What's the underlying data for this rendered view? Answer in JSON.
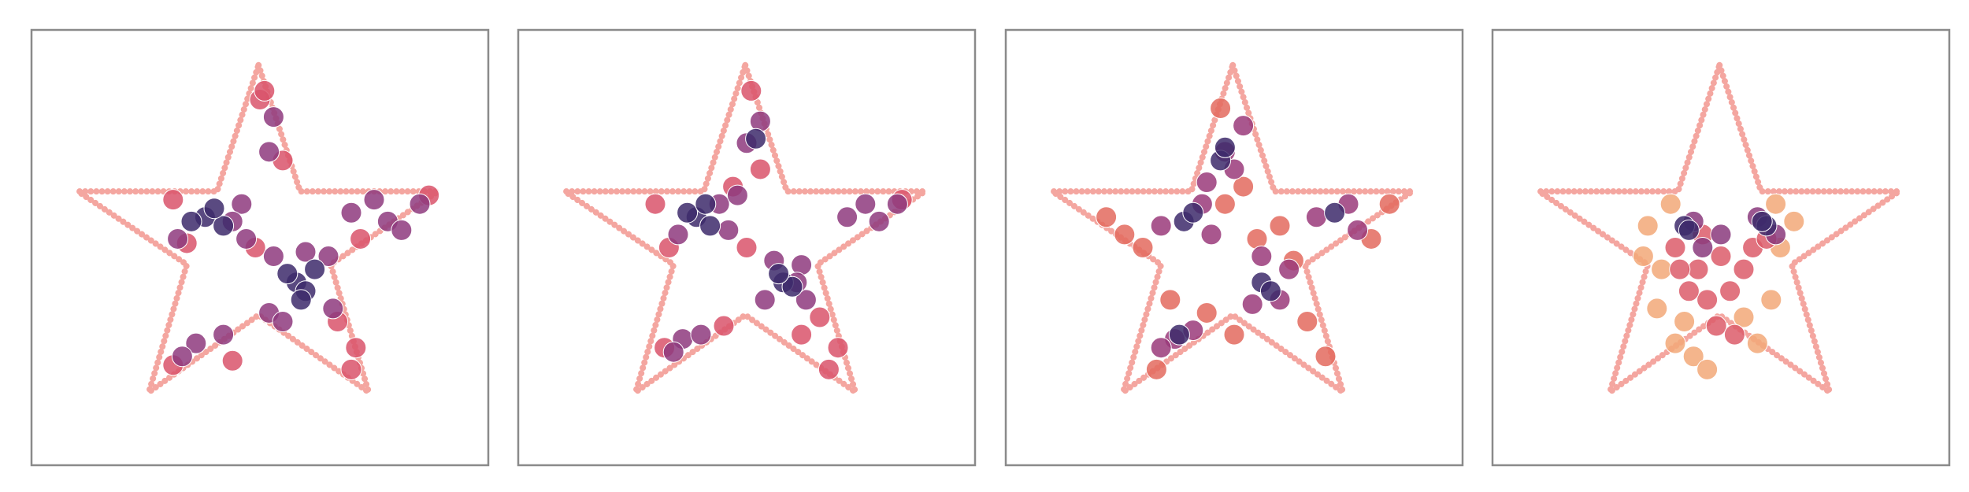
{
  "chart_data": [
    {
      "type": "scatter",
      "xlim": [
        0,
        1
      ],
      "ylim": [
        0,
        1
      ],
      "outline": {
        "color": "#f4a6a0",
        "x": [
          0.497,
          0.588,
          0.89,
          0.655,
          0.738,
          0.497,
          0.257,
          0.34,
          0.102,
          0.406,
          0.497
        ],
        "y": [
          0.919,
          0.629,
          0.629,
          0.461,
          0.168,
          0.345,
          0.168,
          0.461,
          0.629,
          0.629,
          0.919
        ]
      },
      "series": [
        {
          "color": "#d9536b",
          "x": [
            0.31,
            0.49,
            0.5,
            0.55,
            0.67,
            0.87,
            0.72,
            0.44,
            0.7,
            0.71,
            0.31,
            0.51,
            0.34
          ],
          "y": [
            0.61,
            0.5,
            0.84,
            0.7,
            0.33,
            0.62,
            0.52,
            0.24,
            0.22,
            0.27,
            0.23,
            0.86,
            0.51
          ]
        },
        {
          "color": "#8e3a7e",
          "x": [
            0.32,
            0.46,
            0.47,
            0.52,
            0.66,
            0.53,
            0.7,
            0.78,
            0.85,
            0.52,
            0.53,
            0.36,
            0.42,
            0.33,
            0.65,
            0.44,
            0.75,
            0.81,
            0.55,
            0.6
          ],
          "y": [
            0.52,
            0.6,
            0.52,
            0.35,
            0.36,
            0.48,
            0.58,
            0.56,
            0.6,
            0.72,
            0.8,
            0.28,
            0.3,
            0.25,
            0.48,
            0.56,
            0.61,
            0.54,
            0.33,
            0.49
          ]
        },
        {
          "color": "#3d2a6b",
          "x": [
            0.38,
            0.42,
            0.35,
            0.58,
            0.6,
            0.56,
            0.62,
            0.4,
            0.59
          ],
          "y": [
            0.57,
            0.55,
            0.56,
            0.42,
            0.4,
            0.44,
            0.45,
            0.59,
            0.38
          ]
        }
      ]
    },
    {
      "type": "scatter",
      "xlim": [
        0,
        1
      ],
      "ylim": [
        0,
        1
      ],
      "outline": {
        "color": "#f4a6a0",
        "x": [
          0.497,
          0.588,
          0.89,
          0.655,
          0.738,
          0.497,
          0.257,
          0.34,
          0.102,
          0.406,
          0.497
        ],
        "y": [
          0.919,
          0.629,
          0.629,
          0.461,
          0.168,
          0.345,
          0.168,
          0.461,
          0.629,
          0.629,
          0.919
        ]
      },
      "series": [
        {
          "color": "#d9536b",
          "x": [
            0.3,
            0.33,
            0.47,
            0.51,
            0.66,
            0.68,
            0.7,
            0.84,
            0.53,
            0.32,
            0.45,
            0.62,
            0.5
          ],
          "y": [
            0.6,
            0.5,
            0.64,
            0.86,
            0.34,
            0.22,
            0.27,
            0.61,
            0.68,
            0.27,
            0.32,
            0.3,
            0.5
          ]
        },
        {
          "color": "#8e3a7e",
          "x": [
            0.35,
            0.44,
            0.46,
            0.54,
            0.63,
            0.56,
            0.72,
            0.79,
            0.83,
            0.5,
            0.53,
            0.36,
            0.4,
            0.34,
            0.62,
            0.48,
            0.76,
            0.61
          ],
          "y": [
            0.53,
            0.6,
            0.54,
            0.38,
            0.38,
            0.47,
            0.57,
            0.56,
            0.6,
            0.74,
            0.79,
            0.29,
            0.3,
            0.26,
            0.46,
            0.62,
            0.6,
            0.42
          ]
        },
        {
          "color": "#3d2a6b",
          "x": [
            0.39,
            0.42,
            0.37,
            0.58,
            0.6,
            0.57,
            0.41,
            0.52
          ],
          "y": [
            0.57,
            0.55,
            0.58,
            0.42,
            0.41,
            0.44,
            0.6,
            0.75
          ]
        }
      ]
    },
    {
      "type": "scatter",
      "xlim": [
        0,
        1
      ],
      "ylim": [
        0,
        1
      ],
      "outline": {
        "color": "#f4a6a0",
        "x": [
          0.497,
          0.588,
          0.89,
          0.655,
          0.738,
          0.497,
          0.257,
          0.34,
          0.102,
          0.406,
          0.497
        ],
        "y": [
          0.919,
          0.629,
          0.629,
          0.461,
          0.168,
          0.345,
          0.168,
          0.461,
          0.629,
          0.629,
          0.919
        ]
      },
      "series": [
        {
          "color": "#e36a5e",
          "x": [
            0.22,
            0.26,
            0.3,
            0.47,
            0.52,
            0.6,
            0.66,
            0.7,
            0.8,
            0.84,
            0.33,
            0.44,
            0.63,
            0.55,
            0.36,
            0.48,
            0.5
          ],
          "y": [
            0.57,
            0.53,
            0.5,
            0.82,
            0.64,
            0.55,
            0.33,
            0.25,
            0.52,
            0.6,
            0.22,
            0.35,
            0.47,
            0.52,
            0.38,
            0.6,
            0.3
          ]
        },
        {
          "color": "#9a3a7a",
          "x": [
            0.34,
            0.43,
            0.45,
            0.48,
            0.5,
            0.54,
            0.6,
            0.62,
            0.68,
            0.75,
            0.77,
            0.37,
            0.41,
            0.34,
            0.56,
            0.44,
            0.52
          ],
          "y": [
            0.55,
            0.6,
            0.53,
            0.72,
            0.68,
            0.37,
            0.38,
            0.45,
            0.57,
            0.6,
            0.54,
            0.29,
            0.31,
            0.27,
            0.48,
            0.65,
            0.78
          ]
        },
        {
          "color": "#3d2a6b",
          "x": [
            0.39,
            0.41,
            0.47,
            0.48,
            0.56,
            0.58,
            0.72,
            0.38
          ],
          "y": [
            0.56,
            0.58,
            0.7,
            0.73,
            0.42,
            0.4,
            0.58,
            0.3
          ]
        }
      ]
    },
    {
      "type": "scatter",
      "xlim": [
        0,
        1
      ],
      "ylim": [
        0,
        1
      ],
      "outline": {
        "color": "#f4a6a0",
        "x": [
          0.497,
          0.588,
          0.89,
          0.655,
          0.738,
          0.497,
          0.257,
          0.34,
          0.102,
          0.406,
          0.497
        ],
        "y": [
          0.919,
          0.629,
          0.629,
          0.461,
          0.168,
          0.345,
          0.168,
          0.461,
          0.629,
          0.629,
          0.919
        ]
      },
      "series": [
        {
          "color": "#f2a878",
          "x": [
            0.34,
            0.37,
            0.36,
            0.4,
            0.44,
            0.63,
            0.66,
            0.61,
            0.39,
            0.58,
            0.47,
            0.42,
            0.55,
            0.62,
            0.33
          ],
          "y": [
            0.55,
            0.45,
            0.36,
            0.28,
            0.25,
            0.5,
            0.56,
            0.38,
            0.6,
            0.28,
            0.22,
            0.33,
            0.34,
            0.6,
            0.48
          ]
        },
        {
          "color": "#dc5c6a",
          "x": [
            0.4,
            0.45,
            0.5,
            0.55,
            0.47,
            0.52,
            0.43,
            0.57,
            0.49,
            0.53,
            0.46,
            0.6,
            0.41
          ],
          "y": [
            0.5,
            0.45,
            0.48,
            0.45,
            0.38,
            0.4,
            0.4,
            0.5,
            0.32,
            0.3,
            0.53,
            0.52,
            0.45
          ]
        },
        {
          "color": "#8a3a7c",
          "x": [
            0.44,
            0.5,
            0.58,
            0.62,
            0.46
          ],
          "y": [
            0.56,
            0.53,
            0.57,
            0.53,
            0.5
          ]
        },
        {
          "color": "#3d2a6b",
          "x": [
            0.42,
            0.43,
            0.6,
            0.59
          ],
          "y": [
            0.55,
            0.54,
            0.55,
            0.56
          ]
        }
      ]
    }
  ]
}
